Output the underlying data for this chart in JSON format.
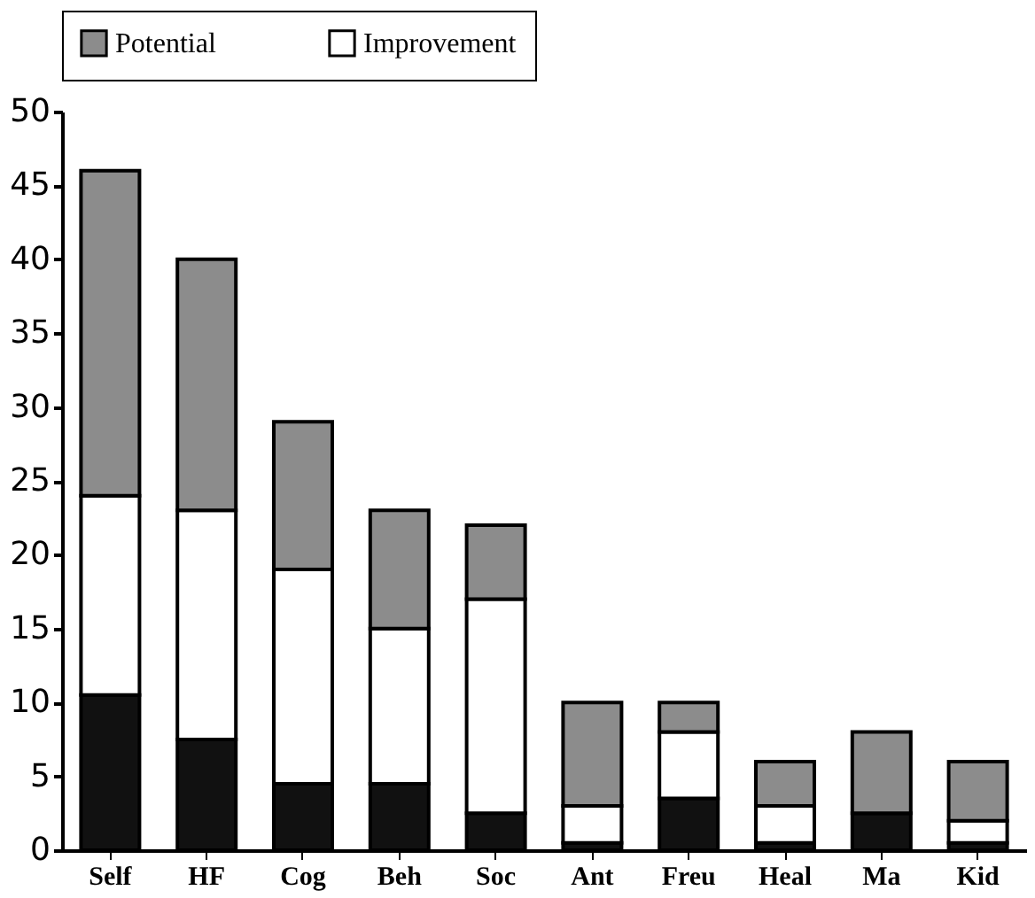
{
  "chart_data": {
    "type": "bar",
    "stacked": true,
    "categories": [
      "Self",
      "HF",
      "Cog",
      "Beh",
      "Soc",
      "Ant",
      "Freu",
      "Heal",
      "Ma",
      "Kid"
    ],
    "series": [
      {
        "color": "#111111",
        "values": [
          10.5,
          7.5,
          4.5,
          4.5,
          2.5,
          0.5,
          3.5,
          0.5,
          2.5,
          0.5
        ]
      },
      {
        "name": "Improvement",
        "color": "#ffffff",
        "values": [
          13.5,
          15.5,
          14.5,
          10.5,
          14.5,
          2.5,
          4.5,
          2.5,
          0,
          1.5
        ]
      },
      {
        "name": "Potential",
        "color": "#8c8c8c",
        "values": [
          22,
          17,
          10,
          8,
          5,
          7,
          2,
          3,
          5.5,
          4
        ]
      }
    ],
    "ylim": [
      0,
      50
    ],
    "yticks": [
      0,
      5,
      10,
      15,
      20,
      25,
      30,
      35,
      40,
      45,
      50
    ],
    "grid": false,
    "legend": "top"
  }
}
